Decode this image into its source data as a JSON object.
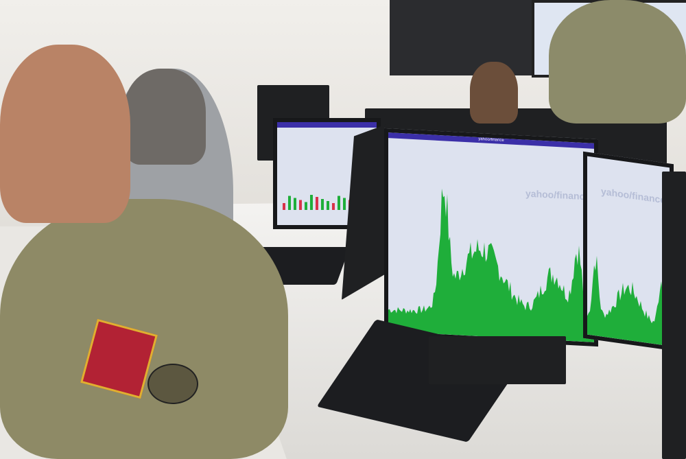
{
  "scene": {
    "description_labels": [],
    "monitor_main": {
      "brand_watermark": "yahoo/finance",
      "header_title": "yahoo/finance"
    },
    "monitor_right": {
      "brand_watermark": "yahoo/finance"
    },
    "colors": {
      "chart_green": "#1fae3a",
      "browser_bar": "#3b2fa8",
      "screen_bg": "#dde2ef"
    }
  }
}
